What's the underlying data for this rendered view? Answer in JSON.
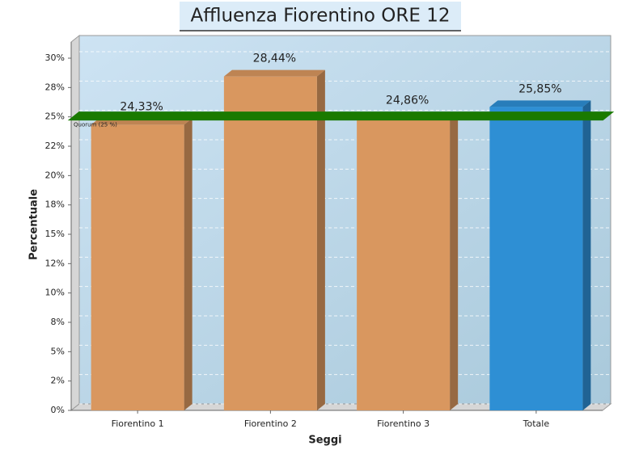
{
  "chart_data": {
    "type": "bar3d",
    "title": "Affluenza Fiorentino ORE 12",
    "x_label": "Seggi",
    "y_label": "Percentuale",
    "categories": [
      "Fiorentino 1",
      "Fiorentino 2",
      "Fiorentino 3",
      "Totale"
    ],
    "values": [
      24.33,
      28.44,
      24.86,
      25.85
    ],
    "value_labels": [
      "24,33%",
      "28,44%",
      "24,86%",
      "25,85%"
    ],
    "colors": [
      "#d9975f",
      "#d9975f",
      "#d9975f",
      "#2e8fd4"
    ],
    "ylim": [
      0,
      30
    ],
    "yticks": [
      {
        "value": 0,
        "label": "0%"
      },
      {
        "value": 2.5,
        "label": "2%"
      },
      {
        "value": 5,
        "label": "5%"
      },
      {
        "value": 7.5,
        "label": "8%"
      },
      {
        "value": 10,
        "label": "10%"
      },
      {
        "value": 12.5,
        "label": "12%"
      },
      {
        "value": 15,
        "label": "15%"
      },
      {
        "value": 17.5,
        "label": "18%"
      },
      {
        "value": 20,
        "label": "20%"
      },
      {
        "value": 22.5,
        "label": "22%"
      },
      {
        "value": 25,
        "label": "25%"
      },
      {
        "value": 27.5,
        "label": "28%"
      },
      {
        "value": 30,
        "label": "30%"
      }
    ],
    "grid": true,
    "quorum": {
      "value": 25,
      "label": "Quorum (25 %)",
      "color": "#1a7a00"
    }
  }
}
